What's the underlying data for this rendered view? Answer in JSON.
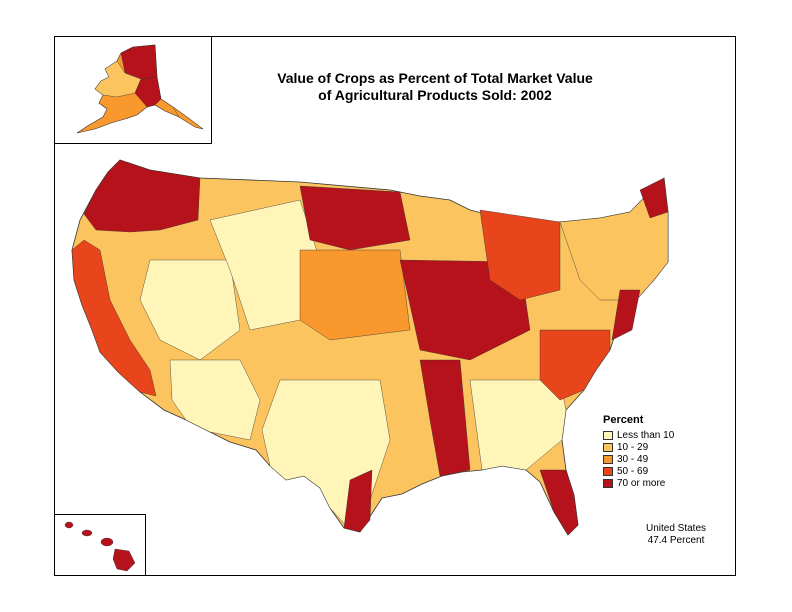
{
  "title": {
    "line1": "Value of Crops as Percent of Total Market Value",
    "line2": "of Agricultural Products Sold:  2002"
  },
  "legend": {
    "title": "Percent",
    "items": [
      {
        "label": "Less than 10",
        "color": "#fff5b8"
      },
      {
        "label": "10 - 29",
        "color": "#fcc45e"
      },
      {
        "label": "30 - 49",
        "color": "#f9982d"
      },
      {
        "label": "50 - 69",
        "color": "#e8451c"
      },
      {
        "label": "70 or more",
        "color": "#b5121b"
      }
    ]
  },
  "summary": {
    "line1": "United States",
    "line2": "47.4 Percent"
  },
  "colors": {
    "border": "#000000",
    "background": "#ffffff"
  }
}
